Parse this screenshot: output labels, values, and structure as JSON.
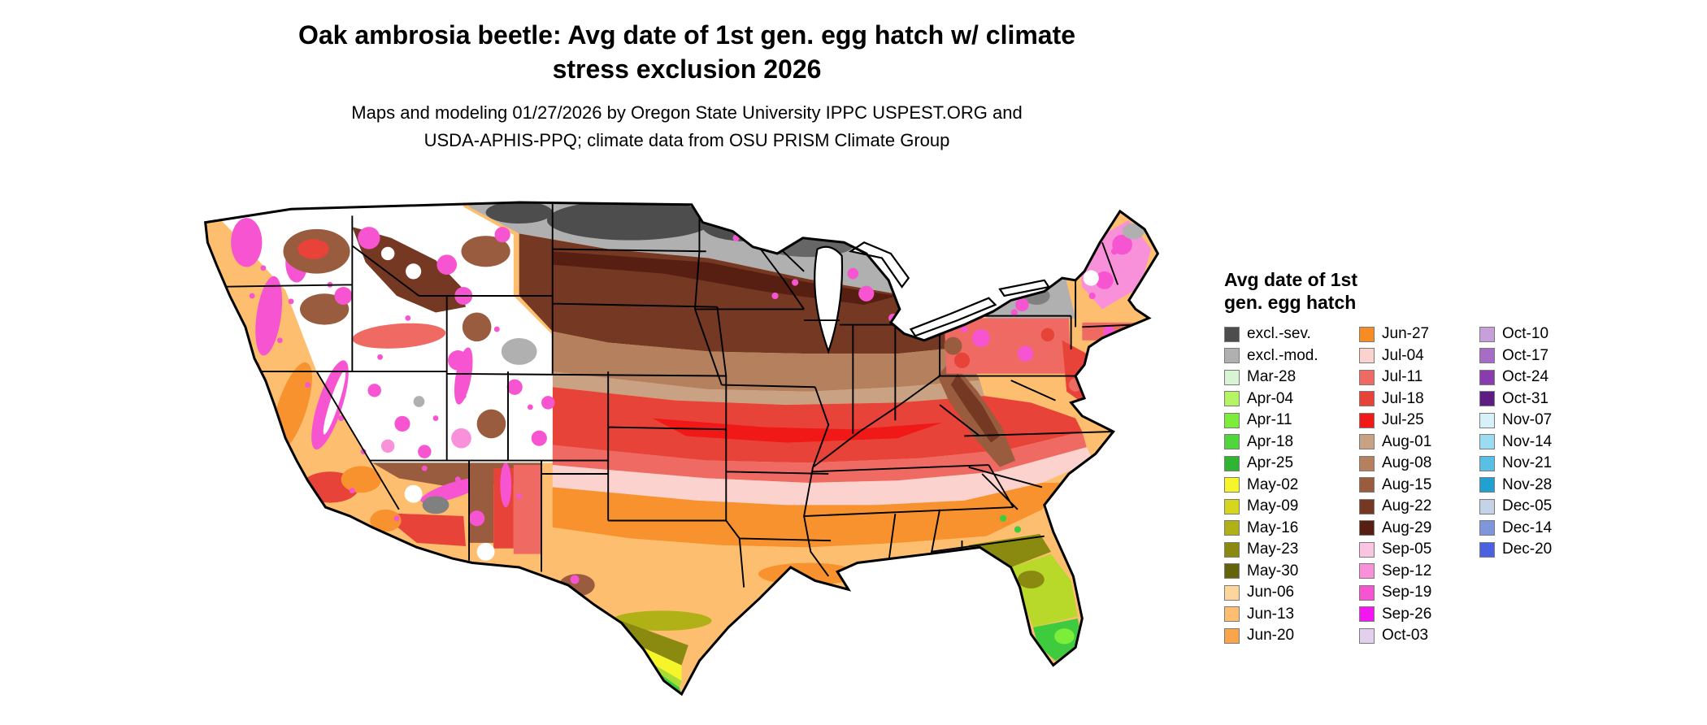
{
  "title": {
    "line1": "Oak ambrosia beetle: Avg date of 1st gen. egg hatch w/ climate",
    "line2": "stress exclusion 2026"
  },
  "subtitle": {
    "line1": "Maps and modeling 01/27/2026 by Oregon State University IPPC USPEST.ORG and",
    "line2": "USDA-APHIS-PPQ; climate data from OSU PRISM Climate Group"
  },
  "legend": {
    "title_line1": "Avg date of 1st",
    "title_line2": "gen. egg hatch",
    "columns": [
      {
        "items": [
          {
            "label": "excl.-sev.",
            "color": "#4d4d4d"
          },
          {
            "label": "excl.-mod.",
            "color": "#b0b0b0"
          },
          {
            "label": "Mar-28",
            "color": "#d8f5d3"
          },
          {
            "label": "Apr-04",
            "color": "#b5f564"
          },
          {
            "label": "Apr-11",
            "color": "#7ded3c"
          },
          {
            "label": "Apr-18",
            "color": "#4fd63a"
          },
          {
            "label": "Apr-25",
            "color": "#2eb532"
          },
          {
            "label": "May-02",
            "color": "#f5f52a"
          },
          {
            "label": "May-09",
            "color": "#d6d61f"
          },
          {
            "label": "May-16",
            "color": "#b0b017"
          },
          {
            "label": "May-23",
            "color": "#8a8a10"
          },
          {
            "label": "May-30",
            "color": "#63630b"
          },
          {
            "label": "Jun-06",
            "color": "#fcd69c"
          },
          {
            "label": "Jun-13",
            "color": "#fdbf6f"
          },
          {
            "label": "Jun-20",
            "color": "#fba54a"
          }
        ]
      },
      {
        "items": [
          {
            "label": "Jun-27",
            "color": "#f88c22"
          },
          {
            "label": "Jul-04",
            "color": "#fbd2cd"
          },
          {
            "label": "Jul-11",
            "color": "#ef6a62"
          },
          {
            "label": "Jul-18",
            "color": "#e84338"
          },
          {
            "label": "Jul-25",
            "color": "#f11818"
          },
          {
            "label": "Aug-01",
            "color": "#c9a284"
          },
          {
            "label": "Aug-08",
            "color": "#b5805e"
          },
          {
            "label": "Aug-15",
            "color": "#9a5c3e"
          },
          {
            "label": "Aug-22",
            "color": "#753823"
          },
          {
            "label": "Aug-29",
            "color": "#571e12"
          },
          {
            "label": "Sep-05",
            "color": "#f9c5e1"
          },
          {
            "label": "Sep-12",
            "color": "#f990da"
          },
          {
            "label": "Sep-19",
            "color": "#f754d2"
          },
          {
            "label": "Sep-26",
            "color": "#f316f3"
          },
          {
            "label": "Oct-03",
            "color": "#e2d0ec"
          }
        ]
      },
      {
        "items": [
          {
            "label": "Oct-10",
            "color": "#c7a0db"
          },
          {
            "label": "Oct-17",
            "color": "#a76cc6"
          },
          {
            "label": "Oct-24",
            "color": "#8a3cae"
          },
          {
            "label": "Oct-31",
            "color": "#5f1c85"
          },
          {
            "label": "Nov-07",
            "color": "#d6f1fa"
          },
          {
            "label": "Nov-14",
            "color": "#9adcf2"
          },
          {
            "label": "Nov-21",
            "color": "#58c0e4"
          },
          {
            "label": "Nov-28",
            "color": "#21a0d2"
          },
          {
            "label": "Dec-05",
            "color": "#c4d3e8"
          },
          {
            "label": "Dec-14",
            "color": "#7e97dc"
          },
          {
            "label": "Dec-20",
            "color": "#4b61e0"
          }
        ]
      }
    ]
  }
}
